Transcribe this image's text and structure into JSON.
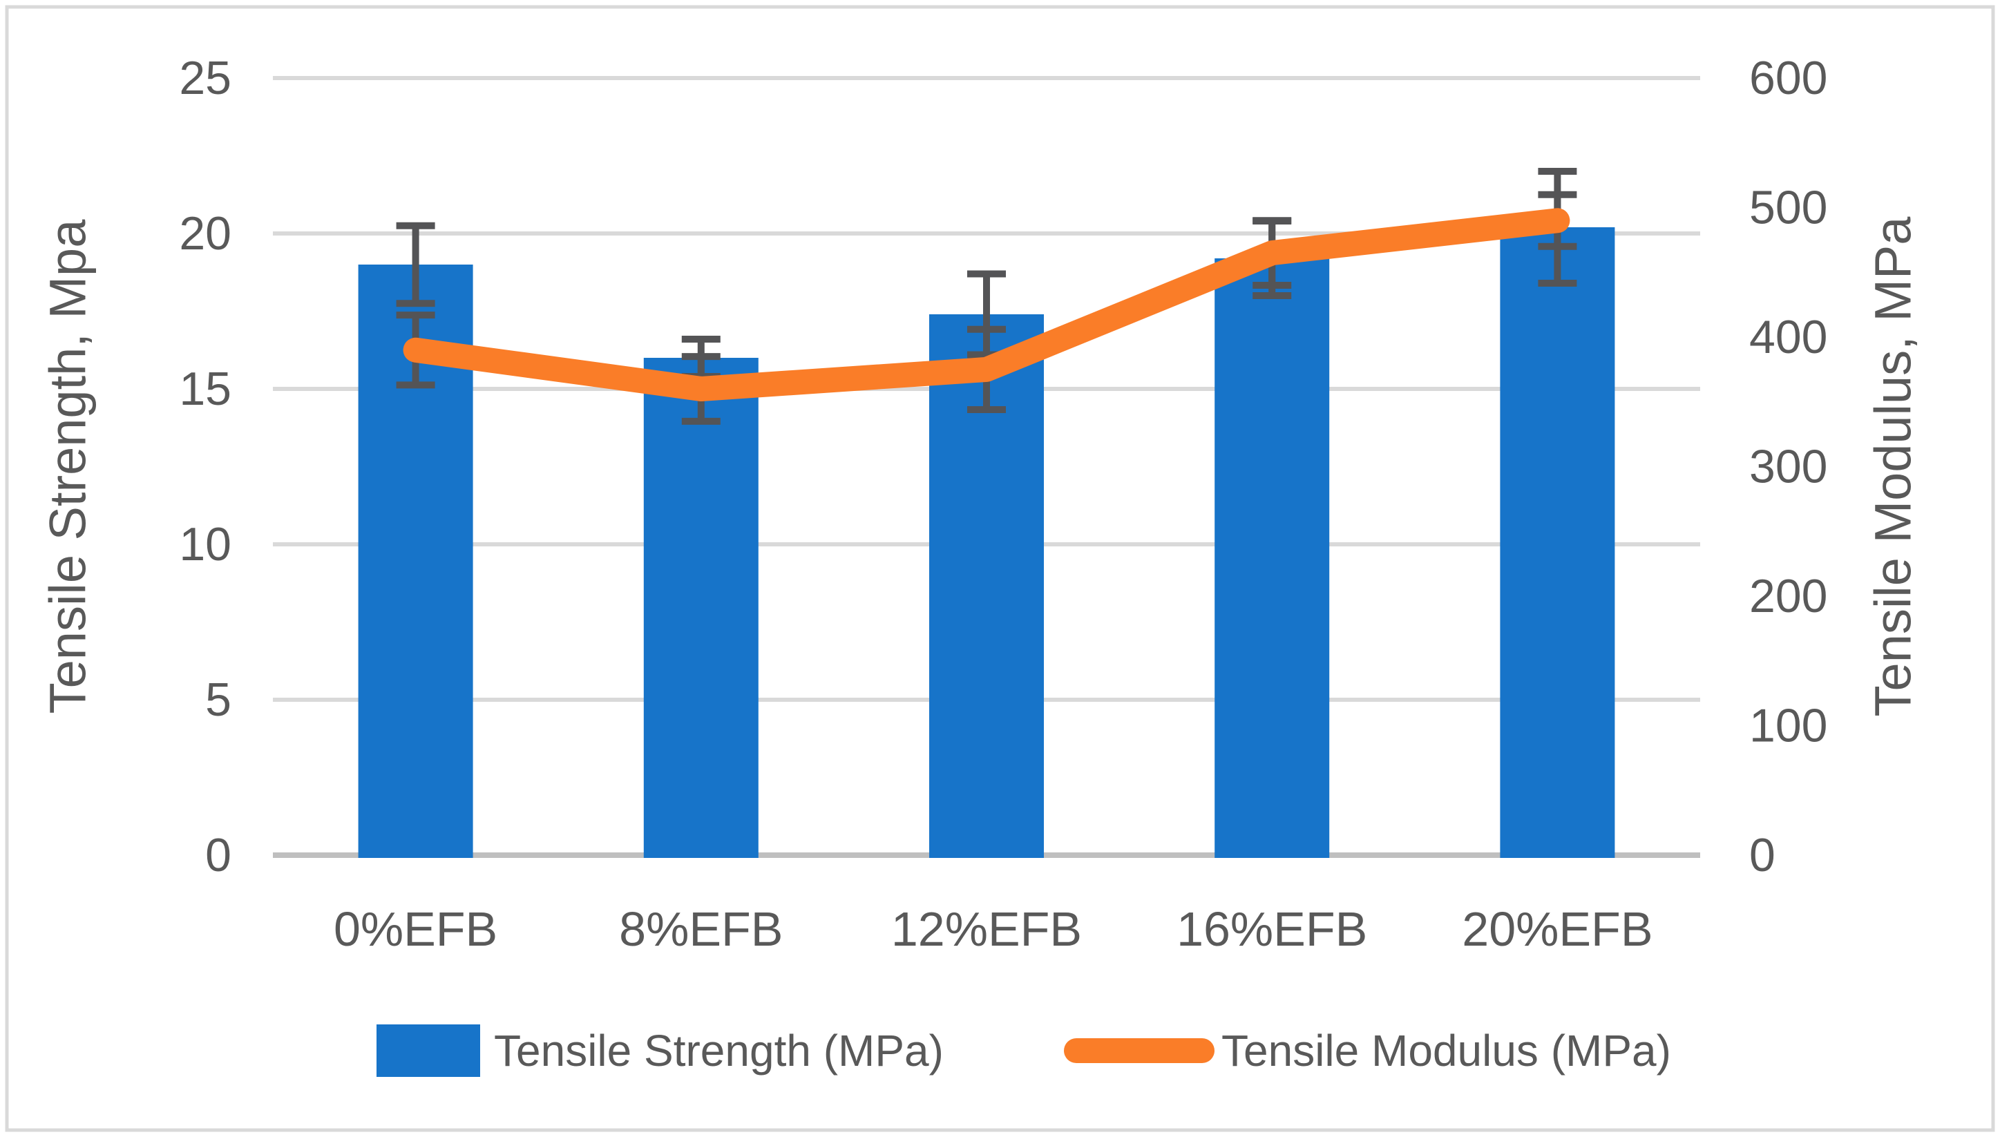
{
  "chart_data": {
    "type": "bar+line",
    "categories": [
      "0%EFB",
      "8%EFB",
      "12%EFB",
      "16%EFB",
      "20%EFB"
    ],
    "series": [
      {
        "name": "Tensile Strength (MPa)",
        "type": "bar",
        "axis": "left",
        "color": "#1774C9",
        "values": [
          19.0,
          16.0,
          17.4,
          19.2,
          20.2
        ],
        "errors": [
          1.25,
          0.6,
          1.3,
          1.2,
          1.8
        ]
      },
      {
        "name": "Tensile Modulus (MPa)",
        "type": "line",
        "axis": "right",
        "color": "#FA7D28",
        "values": [
          390,
          360,
          375,
          465,
          490
        ],
        "errors": [
          27,
          25,
          31,
          25,
          20
        ]
      }
    ],
    "left_axis": {
      "title": "Tensile Strength, Mpa",
      "min": 0,
      "max": 25,
      "tick_step": 5,
      "ticks": [
        25,
        20,
        15,
        10,
        5,
        0
      ]
    },
    "right_axis": {
      "title": "Tensile Modulus, MPa",
      "min": 0,
      "max": 600,
      "tick_step": 100,
      "ticks": [
        600,
        500,
        400,
        300,
        200,
        100,
        0
      ]
    },
    "grid": "horizontal",
    "legend_position": "bottom"
  },
  "colors": {
    "gridline": "#D9D9D9",
    "axis_line": "#BFBFBF",
    "error_bar": "#545456",
    "text": "#595959",
    "frame": "#D9D9D9",
    "background": "#FFFFFF"
  }
}
